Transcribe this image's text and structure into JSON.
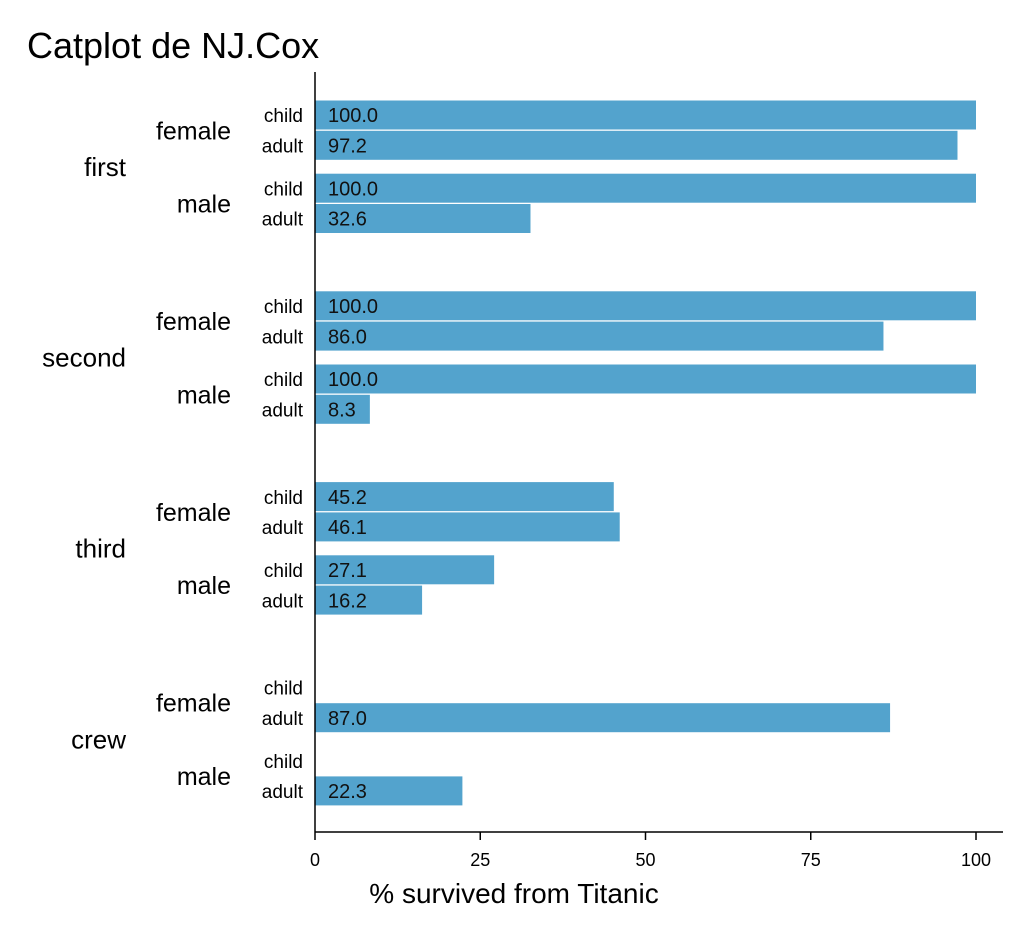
{
  "chart_data": {
    "type": "bar",
    "orientation": "horizontal",
    "title": "Catplot de NJ.Cox",
    "xlabel": "% survived from Titanic",
    "ylabel": "",
    "xlim": [
      0,
      100
    ],
    "xticks": [
      "0",
      "25",
      "50",
      "75",
      "100"
    ],
    "bar_color": "#53a3cd",
    "grid": false,
    "groups": [
      {
        "class": "first",
        "sexes": [
          {
            "sex": "female",
            "rows": [
              {
                "age": "child",
                "value": 100.0,
                "label": "100.0"
              },
              {
                "age": "adult",
                "value": 97.2,
                "label": "97.2"
              }
            ]
          },
          {
            "sex": "male",
            "rows": [
              {
                "age": "child",
                "value": 100.0,
                "label": "100.0"
              },
              {
                "age": "adult",
                "value": 32.6,
                "label": "32.6"
              }
            ]
          }
        ]
      },
      {
        "class": "second",
        "sexes": [
          {
            "sex": "female",
            "rows": [
              {
                "age": "child",
                "value": 100.0,
                "label": "100.0"
              },
              {
                "age": "adult",
                "value": 86.0,
                "label": "86.0"
              }
            ]
          },
          {
            "sex": "male",
            "rows": [
              {
                "age": "child",
                "value": 100.0,
                "label": "100.0"
              },
              {
                "age": "adult",
                "value": 8.3,
                "label": "8.3"
              }
            ]
          }
        ]
      },
      {
        "class": "third",
        "sexes": [
          {
            "sex": "female",
            "rows": [
              {
                "age": "child",
                "value": 45.2,
                "label": "45.2"
              },
              {
                "age": "adult",
                "value": 46.1,
                "label": "46.1"
              }
            ]
          },
          {
            "sex": "male",
            "rows": [
              {
                "age": "child",
                "value": 27.1,
                "label": "27.1"
              },
              {
                "age": "adult",
                "value": 16.2,
                "label": "16.2"
              }
            ]
          }
        ]
      },
      {
        "class": "crew",
        "sexes": [
          {
            "sex": "female",
            "rows": [
              {
                "age": "child",
                "value": null,
                "label": ""
              },
              {
                "age": "adult",
                "value": 87.0,
                "label": "87.0"
              }
            ]
          },
          {
            "sex": "male",
            "rows": [
              {
                "age": "child",
                "value": null,
                "label": ""
              },
              {
                "age": "adult",
                "value": 22.3,
                "label": "22.3"
              }
            ]
          }
        ]
      }
    ]
  }
}
